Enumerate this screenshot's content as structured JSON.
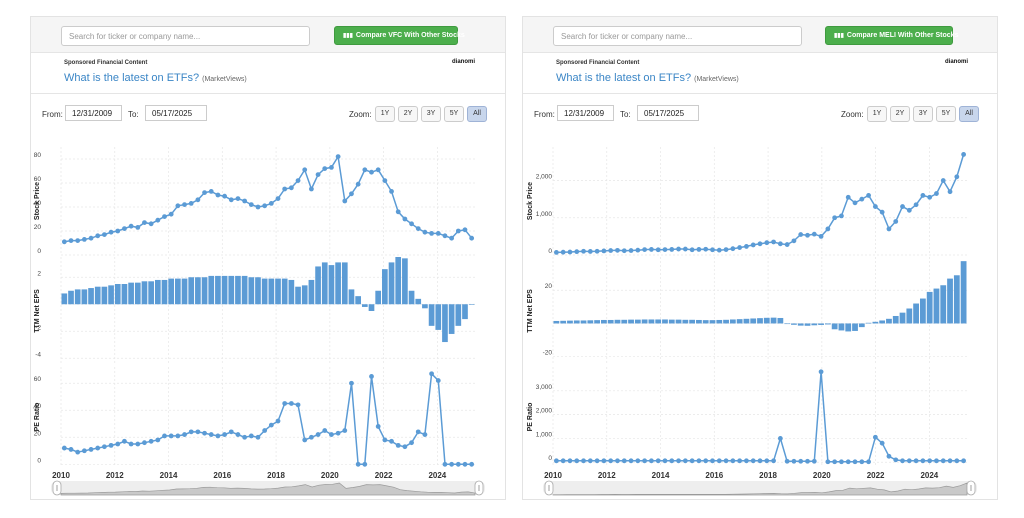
{
  "colors": {
    "series": "#5b9bd5",
    "grid": "#e6e6e6",
    "nav_fill": "#c9c9c9",
    "nav_stroke": "#9a9a9a",
    "button_green": "#4cae4c"
  },
  "panels": [
    {
      "search_placeholder": "Search for ticker or company name...",
      "compare_label": "Compare VFC With Other Stocks",
      "compare_icon": "bar-chart-icon",
      "sponsored": "Sponsored Financial Content",
      "brand": "dianomi",
      "ad_title": "What is the latest on ETFs?",
      "ad_source": "(MarketViews)",
      "from_label": "From:",
      "from_date": "12/31/2009",
      "to_label": "To:",
      "to_date": "05/17/2025",
      "zoom_label": "Zoom:",
      "zoom_options": [
        "1Y",
        "2Y",
        "3Y",
        "5Y",
        "All"
      ],
      "zoom_selected": "All"
    },
    {
      "search_placeholder": "Search for ticker or company name...",
      "compare_label": "Compare MELI With Other Stocks",
      "compare_icon": "bar-chart-icon",
      "sponsored": "Sponsored Financial Content",
      "brand": "dianomi",
      "ad_title": "What is the latest on ETFs?",
      "ad_source": "(MarketViews)",
      "from_label": "From:",
      "from_date": "12/31/2009",
      "to_label": "To:",
      "to_date": "05/17/2025",
      "zoom_label": "Zoom:",
      "zoom_options": [
        "1Y",
        "2Y",
        "3Y",
        "5Y",
        "All"
      ],
      "zoom_selected": "All"
    }
  ],
  "chart_data": [
    {
      "type": "line",
      "ticker": "VFC",
      "x_start": 2010.0,
      "x_step": 0.25,
      "x_ticks": [
        "2010",
        "2012",
        "2014",
        "2016",
        "2018",
        "2020",
        "2022",
        "2024"
      ],
      "panes": [
        {
          "ylabel": "Stock Price",
          "type": "line",
          "ylim": [
            0,
            90
          ],
          "ticks": [
            0,
            20,
            40,
            60,
            80
          ],
          "tick_labels": [
            "0",
            "20",
            "40",
            "60",
            "80"
          ],
          "values": [
            11,
            12,
            12,
            13,
            14,
            16,
            17,
            19,
            20,
            22,
            24,
            23,
            27,
            26,
            29,
            32,
            34,
            41,
            42,
            43,
            46,
            52,
            53,
            50,
            49,
            46,
            47,
            45,
            42,
            40,
            41,
            43,
            47,
            55,
            56,
            62,
            71,
            55,
            67,
            72,
            73,
            82,
            45,
            51,
            59,
            71,
            69,
            71,
            62,
            53,
            36,
            30,
            26,
            22,
            19,
            18,
            18,
            16,
            14,
            20,
            21,
            14
          ]
        },
        {
          "ylabel": "TTM Net EPS",
          "type": "bar",
          "ylim": [
            -4.5,
            3.5
          ],
          "ticks": [
            -4,
            -2,
            0,
            2
          ],
          "tick_labels": [
            "-4",
            "-2",
            "",
            "2"
          ],
          "values": [
            0.8,
            1.0,
            1.1,
            1.1,
            1.2,
            1.3,
            1.3,
            1.4,
            1.5,
            1.5,
            1.6,
            1.6,
            1.7,
            1.7,
            1.8,
            1.8,
            1.9,
            1.9,
            1.9,
            2.0,
            2.0,
            2.0,
            2.1,
            2.1,
            2.1,
            2.1,
            2.1,
            2.1,
            2.0,
            2.0,
            1.9,
            1.9,
            1.9,
            1.9,
            1.8,
            1.3,
            1.4,
            1.8,
            2.8,
            3.1,
            2.9,
            3.1,
            3.1,
            1.1,
            0.6,
            -0.2,
            -0.5,
            1.0,
            2.6,
            3.1,
            3.5,
            3.4,
            1.0,
            0.4,
            -0.3,
            -1.6,
            -1.9,
            -2.8,
            -2.2,
            -1.6,
            -1.1,
            0
          ]
        },
        {
          "ylabel": "PE Ratio",
          "type": "line",
          "ylim": [
            -2,
            72
          ],
          "ticks": [
            0,
            20,
            40,
            60
          ],
          "tick_labels": [
            "0",
            "20",
            "40",
            "60"
          ],
          "values": [
            12,
            11,
            9,
            10,
            11,
            12,
            13,
            14,
            15,
            17,
            15,
            15,
            16,
            17,
            18,
            21,
            21,
            21,
            22,
            24,
            24,
            23,
            22,
            21,
            22,
            24,
            22,
            20,
            21,
            20,
            25,
            29,
            32,
            45,
            45,
            44,
            18,
            20,
            22,
            25,
            22,
            23,
            25,
            60,
            0,
            0,
            65,
            28,
            18,
            17,
            14,
            13,
            16,
            24,
            22,
            67,
            62,
            0,
            0,
            0,
            0,
            0
          ]
        }
      ]
    },
    {
      "type": "line",
      "ticker": "MELI",
      "x_start": 2010.0,
      "x_step": 0.25,
      "x_ticks": [
        "2010",
        "2012",
        "2014",
        "2016",
        "2018",
        "2020",
        "2022",
        "2024"
      ],
      "panes": [
        {
          "ylabel": "Stock Price",
          "type": "line",
          "ylim": [
            0,
            2900
          ],
          "ticks": [
            0,
            1000,
            2000
          ],
          "tick_labels": [
            "0",
            "1,000",
            "2,000"
          ],
          "values": [
            70,
            75,
            80,
            90,
            100,
            95,
            100,
            110,
            120,
            125,
            115,
            120,
            130,
            145,
            150,
            140,
            145,
            150,
            160,
            160,
            140,
            150,
            155,
            140,
            130,
            145,
            170,
            200,
            230,
            270,
            300,
            330,
            350,
            300,
            280,
            380,
            550,
            530,
            560,
            500,
            700,
            1000,
            1050,
            1550,
            1400,
            1500,
            1600,
            1300,
            1150,
            700,
            900,
            1300,
            1200,
            1350,
            1600,
            1550,
            1650,
            2000,
            1700,
            2100,
            2700
          ]
        },
        {
          "ylabel": "TTM Net EPS",
          "type": "bar",
          "ylim": [
            -25,
            40
          ],
          "ticks": [
            -20,
            0,
            20
          ],
          "tick_labels": [
            "-20",
            "",
            "20"
          ],
          "values": [
            1.5,
            1.6,
            1.7,
            1.8,
            1.8,
            1.9,
            2.0,
            2.1,
            2.1,
            2.2,
            2.2,
            2.3,
            2.3,
            2.4,
            2.4,
            2.4,
            2.4,
            2.3,
            2.3,
            2.2,
            2.2,
            2.1,
            2.0,
            2.0,
            2.1,
            2.2,
            2.4,
            2.6,
            2.8,
            3.0,
            3.2,
            3.4,
            3.5,
            3.3,
            -0.3,
            -0.8,
            -1.3,
            -1.4,
            -1.1,
            -0.9,
            -0.6,
            -3.5,
            -4.2,
            -4.8,
            -4.5,
            -2.2,
            0.4,
            1.0,
            1.8,
            2.8,
            4.5,
            6.5,
            9.0,
            12.0,
            15.0,
            19.0,
            21.0,
            23.0,
            27.0,
            29.0,
            37.5
          ]
        },
        {
          "ylabel": "PE Ratio",
          "type": "line",
          "ylim": [
            -200,
            4000
          ],
          "ticks": [
            0,
            1000,
            2000,
            3000
          ],
          "tick_labels": [
            "0",
            "1,000",
            "2,000",
            "3,000"
          ],
          "values": [
            60,
            60,
            60,
            60,
            60,
            60,
            60,
            60,
            60,
            60,
            60,
            60,
            60,
            60,
            60,
            60,
            60,
            60,
            60,
            60,
            60,
            60,
            60,
            60,
            60,
            60,
            60,
            60,
            60,
            60,
            60,
            60,
            60,
            1000,
            40,
            40,
            40,
            40,
            40,
            3800,
            20,
            20,
            20,
            20,
            20,
            20,
            20,
            1050,
            800,
            250,
            100,
            60,
            60,
            60,
            60,
            60,
            60,
            60,
            60,
            60,
            60
          ]
        }
      ]
    }
  ]
}
